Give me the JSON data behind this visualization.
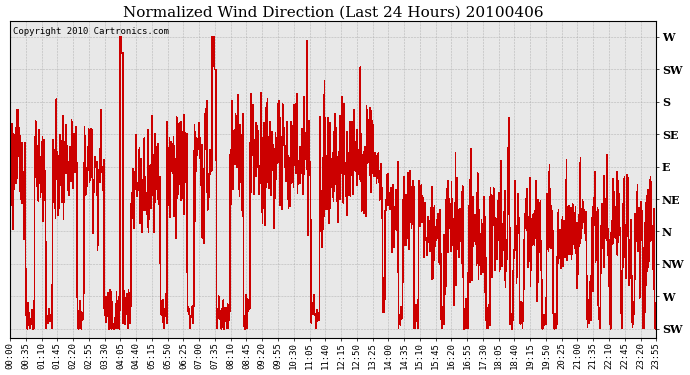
{
  "title": "Normalized Wind Direction (Last 24 Hours) 20100406",
  "copyright_text": "Copyright 2010 Cartronics.com",
  "line_color": "#cc0000",
  "background_color": "#ffffff",
  "plot_bg_color": "#e8e8e8",
  "grid_color": "#aaaaaa",
  "ytick_labels": [
    "W",
    "SW",
    "S",
    "SE",
    "E",
    "NE",
    "N",
    "NW",
    "W",
    "SW"
  ],
  "ytick_values": [
    9,
    8,
    7,
    6,
    5,
    4,
    3,
    2,
    1,
    0
  ],
  "ylim": [
    -0.3,
    9.5
  ],
  "xtick_labels": [
    "00:00",
    "00:35",
    "01:10",
    "01:45",
    "02:20",
    "02:55",
    "03:30",
    "04:05",
    "04:40",
    "05:15",
    "05:50",
    "06:25",
    "07:00",
    "07:35",
    "08:10",
    "08:45",
    "09:20",
    "09:55",
    "10:30",
    "11:05",
    "11:40",
    "12:15",
    "12:50",
    "13:25",
    "14:00",
    "14:35",
    "15:10",
    "15:45",
    "16:20",
    "16:55",
    "17:30",
    "18:05",
    "18:40",
    "19:15",
    "19:50",
    "20:25",
    "21:00",
    "21:35",
    "22:10",
    "22:45",
    "23:20",
    "23:55"
  ],
  "title_fontsize": 11,
  "tick_fontsize": 6.5,
  "ytick_fontsize": 8,
  "figsize": [
    6.9,
    3.75
  ],
  "dpi": 100
}
